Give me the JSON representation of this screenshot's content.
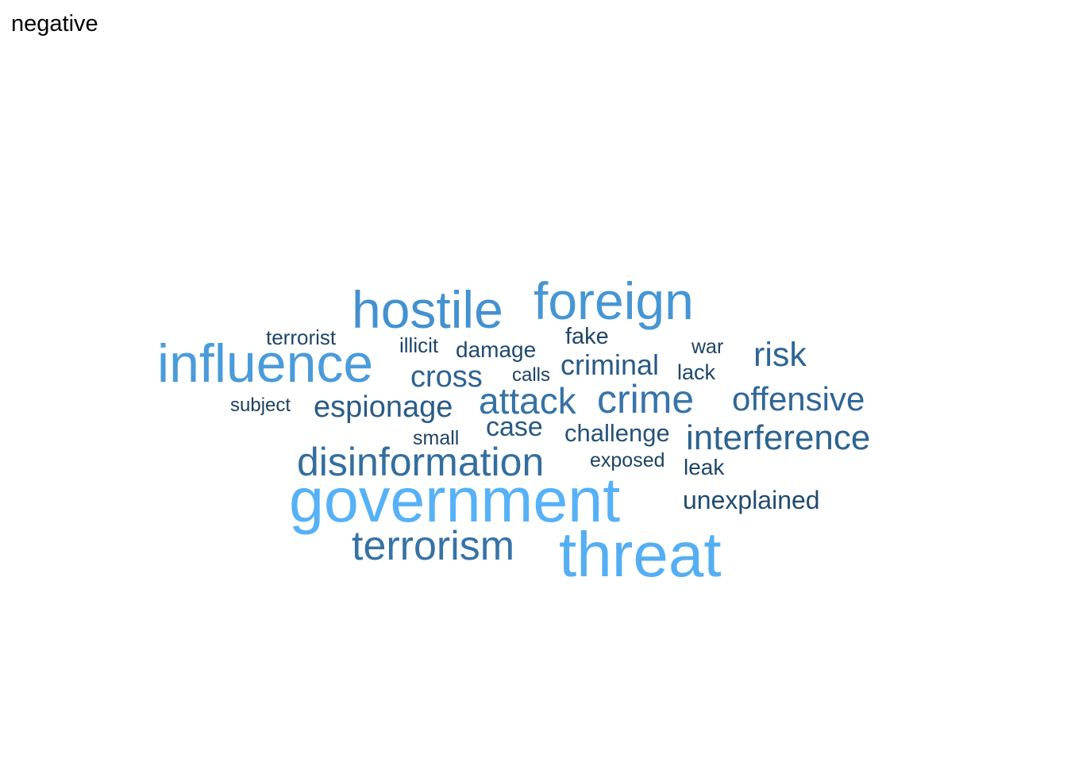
{
  "panel": {
    "title": "negative"
  },
  "wordcloud": {
    "words": [
      {
        "text": "government",
        "color": "#56B1F7"
      },
      {
        "text": "threat",
        "color": "#54AEF3"
      },
      {
        "text": "foreign",
        "color": "#4596D5"
      },
      {
        "text": "hostile",
        "color": "#4391D0"
      },
      {
        "text": "influence",
        "color": "#4A9BDB"
      },
      {
        "text": "terrorism",
        "color": "#3672A6"
      },
      {
        "text": "disinformation",
        "color": "#336E9F"
      },
      {
        "text": "crime",
        "color": "#3874AA"
      },
      {
        "text": "attack",
        "color": "#3672A5"
      },
      {
        "text": "interference",
        "color": "#2D638F"
      },
      {
        "text": "offensive",
        "color": "#2F6697"
      },
      {
        "text": "espionage",
        "color": "#2A5C87"
      },
      {
        "text": "risk",
        "color": "#2E6595"
      },
      {
        "text": "cross",
        "color": "#2E6392"
      },
      {
        "text": "criminal",
        "color": "#295A85"
      },
      {
        "text": "case",
        "color": "#285982"
      },
      {
        "text": "challenge",
        "color": "#24527A"
      },
      {
        "text": "unexplained",
        "color": "#204B6F"
      },
      {
        "text": "damage",
        "color": "#1F4A6E"
      },
      {
        "text": "fake",
        "color": "#1D4667"
      },
      {
        "text": "terrorist",
        "color": "#1D4667"
      },
      {
        "text": "leak",
        "color": "#1D4667"
      },
      {
        "text": "lack",
        "color": "#1D4667"
      },
      {
        "text": "exposed",
        "color": "#1C4464"
      },
      {
        "text": "small",
        "color": "#1C4464"
      },
      {
        "text": "illicit",
        "color": "#1C4464"
      },
      {
        "text": "war",
        "color": "#1B4262"
      },
      {
        "text": "calls",
        "color": "#1B4262"
      },
      {
        "text": "subject",
        "color": "#1A3F5E"
      }
    ]
  }
}
